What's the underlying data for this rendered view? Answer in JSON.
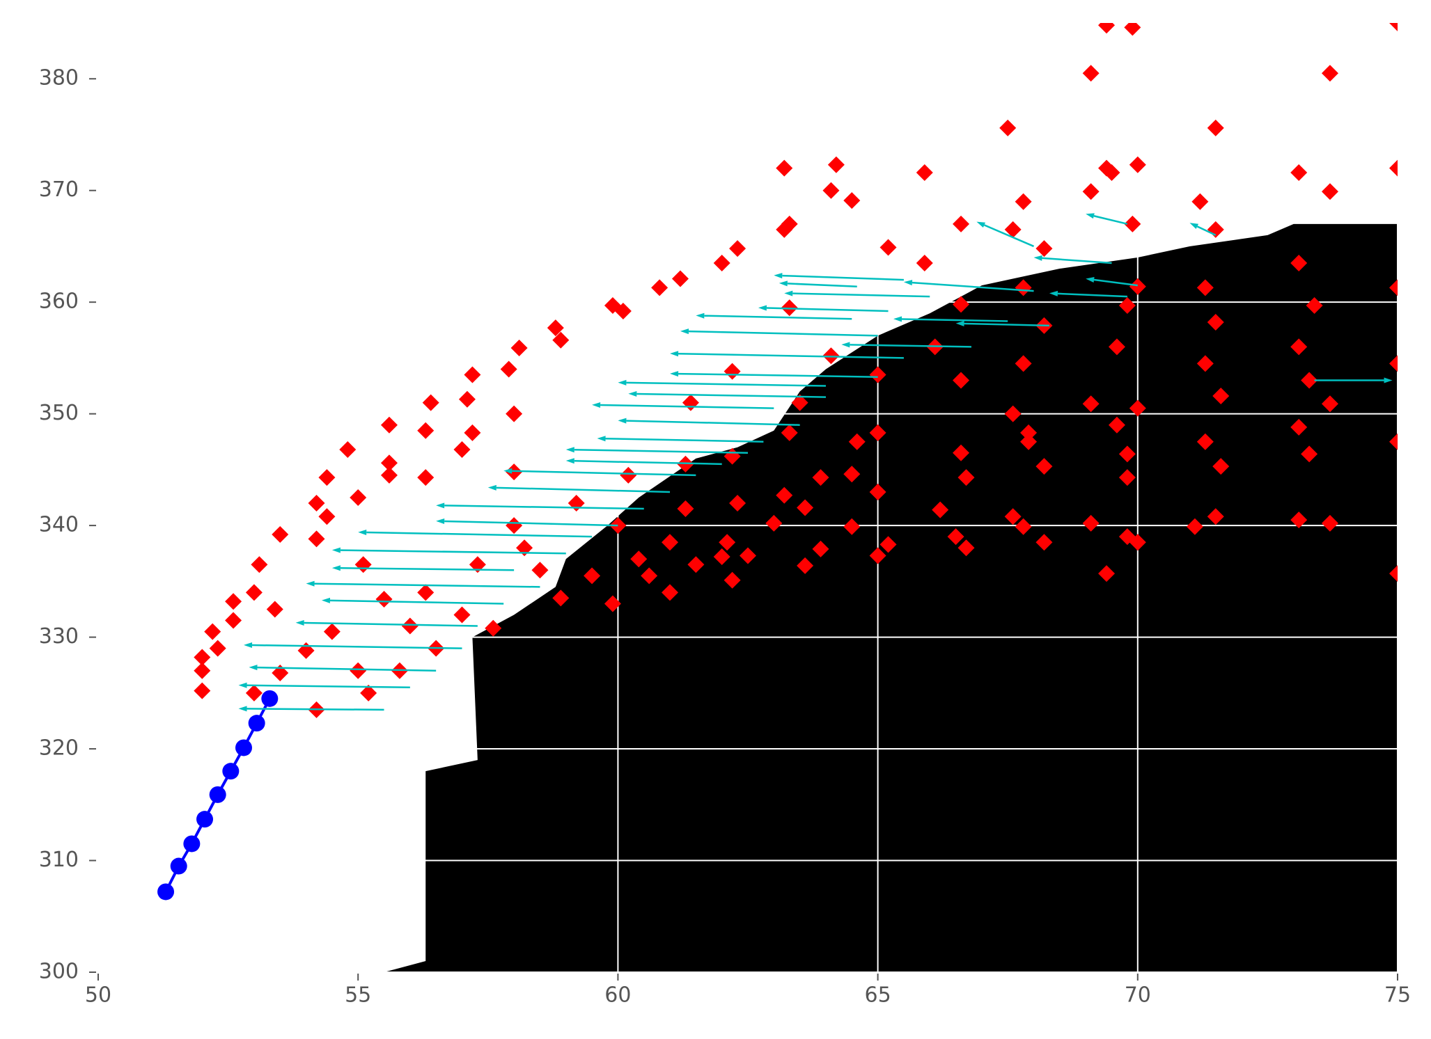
{
  "chart_data": {
    "type": "scatter",
    "xlim": [
      50,
      75
    ],
    "ylim": [
      300,
      385
    ],
    "xticks": [
      50,
      55,
      60,
      65,
      70,
      75
    ],
    "yticks": [
      300,
      310,
      320,
      330,
      340,
      350,
      360,
      370,
      380
    ],
    "grid": true,
    "grid_color": "#ffffff",
    "region": {
      "color": "#000000",
      "x": [
        55.5,
        56.3,
        56.3,
        57.3,
        57.2,
        58.0,
        58.8,
        59.0,
        59.8,
        60.4,
        61.5,
        62.3,
        63.0,
        63.5,
        64.0,
        65.0,
        66.0,
        67.0,
        68.5,
        70.0,
        71.0,
        72.5,
        73.0,
        75.0,
        75.0
      ],
      "y": [
        300,
        301,
        318,
        319,
        330,
        332,
        334.5,
        337,
        340,
        342.5,
        346,
        347,
        348.5,
        352,
        354,
        357,
        359,
        361.5,
        363,
        364,
        365,
        366,
        367,
        367,
        300
      ]
    },
    "quiver": {
      "color": "#00bfbf",
      "x": [
        55.5,
        56,
        56.5,
        57,
        57.3,
        57.8,
        58.5,
        58,
        59,
        59.5,
        60,
        60.5,
        61,
        61.5,
        62,
        62.5,
        62.8,
        63.5,
        63,
        64,
        64,
        65,
        65.5,
        65,
        64.5,
        65.2,
        66,
        64.6,
        65.5,
        66.8,
        67.5,
        68.3,
        68,
        69.5,
        69.8,
        70,
        68,
        69.8,
        71.5,
        73.4
      ],
      "y": [
        323.5,
        325.5,
        327,
        329,
        331,
        333,
        334.5,
        336,
        337.5,
        339,
        340,
        341.5,
        343,
        344.5,
        345.5,
        346.5,
        347.5,
        349,
        350.5,
        351.5,
        352.5,
        353.3,
        355,
        357,
        358.5,
        359.2,
        360.5,
        361.4,
        362,
        356,
        358.3,
        357.9,
        361,
        363.5,
        360.5,
        361.5,
        365,
        367,
        366,
        353
      ],
      "u": [
        -2.8,
        -3.3,
        -3.6,
        -4.2,
        -3.5,
        -3.5,
        -4.5,
        -3.5,
        -4.5,
        -4.5,
        -3.5,
        -4,
        -3.5,
        -3.7,
        -3,
        -3.5,
        -3.2,
        -3.5,
        -3.5,
        -3.8,
        -4,
        -4,
        -4.5,
        -3.8,
        -3,
        -2.5,
        -2.8,
        -1.5,
        -2.5,
        -2.5,
        -2.2,
        -1.8,
        -2.5,
        -1.5,
        -1.5,
        -1,
        -1.1,
        -0.8,
        -0.5,
        1.5
      ],
      "v": [
        0.1,
        0.2,
        0.3,
        0.3,
        0.3,
        0.3,
        0.3,
        0.2,
        0.3,
        0.4,
        0.4,
        0.3,
        0.4,
        0.4,
        0.3,
        0.3,
        0.3,
        0.4,
        0.3,
        0.3,
        0.3,
        0.3,
        0.4,
        0.4,
        0.3,
        0.3,
        0.3,
        0.3,
        0.4,
        0.2,
        0.2,
        0.2,
        0.8,
        0.5,
        0.3,
        0.6,
        2.2,
        0.9,
        1.1,
        0
      ]
    },
    "series": [
      {
        "color": "#ff0000",
        "marker": "D",
        "x": [
          52.0,
          52.0,
          52.0,
          52.3,
          52.2,
          52.6,
          52.6,
          53.0,
          53.1,
          53.4,
          53.5,
          54.2,
          54.2,
          54.4,
          54.4,
          54.8,
          55.0,
          55.1,
          55.6,
          55.6,
          55.6,
          56.3,
          56.3,
          56.4,
          57.1,
          57.2,
          57.2,
          57.0,
          57.9,
          58.1,
          58.0,
          58.0,
          58.8,
          58.9,
          59.9,
          60.1,
          60.8,
          61.2,
          62.0,
          62.3,
          63.2,
          63.3,
          63.2,
          63.3,
          64.1,
          64.2,
          64.5,
          65.2,
          65.9,
          66.6,
          67.5,
          67.6,
          67.8,
          68.2,
          69.1,
          69.4,
          69.4,
          69.5,
          69.1,
          69.9,
          70.0,
          69.9,
          71.2,
          71.5,
          71.5,
          73.1,
          73.7,
          73.7,
          75.0,
          75.0,
          65.0,
          65.0,
          64.6,
          64.5,
          64.5,
          65.0,
          65.2,
          65.0,
          66.1,
          66.6,
          66.6,
          66.7,
          66.2,
          66.5,
          66.7,
          67.6,
          67.6,
          67.9,
          67.9,
          67.8,
          67.8,
          68.2,
          68.2,
          69.1,
          69.1,
          69.4,
          69.6,
          69.6,
          69.8,
          69.8,
          69.8,
          70.0,
          70.0,
          71.1,
          71.3,
          71.3,
          71.5,
          71.6,
          71.6,
          71.5,
          73.1,
          73.1,
          73.1,
          73.3,
          73.3,
          73.7,
          73.7,
          75.0,
          75.0,
          75.0,
          75.0,
          73.1,
          73.4,
          71.3,
          69.8,
          70.0,
          67.8,
          68.2,
          66.6,
          65.9,
          53.0,
          53.5,
          54.0,
          54.2,
          54.5,
          55.0,
          55.2,
          55.5,
          55.8,
          56.0,
          56.3,
          56.5,
          57.0,
          57.3,
          57.6,
          58.0,
          58.2,
          58.5,
          58.9,
          59.2,
          59.5,
          59.9,
          60.0,
          60.2,
          60.4,
          60.6,
          61.0,
          61.0,
          61.3,
          61.3,
          61.4,
          61.5,
          62.0,
          62.2,
          62.1,
          62.3,
          62.2,
          62.2,
          62.5,
          63.0,
          63.2,
          63.3,
          63.5,
          63.6,
          63.6,
          63.9,
          63.9,
          64.1
        ],
        "values": [
          325.2,
          327,
          328.2,
          329,
          330.5,
          331.5,
          333.2,
          334,
          336.5,
          332.5,
          339.2,
          342,
          338.8,
          344.3,
          340.8,
          346.8,
          342.5,
          336.5,
          349,
          345.6,
          344.5,
          348.5,
          344.3,
          351,
          351.3,
          353.5,
          348.3,
          346.8,
          354,
          355.9,
          350,
          344.8,
          357.7,
          356.6,
          359.7,
          359.2,
          361.3,
          362.1,
          363.5,
          364.8,
          366.5,
          367,
          372,
          359.5,
          370,
          372.3,
          369.1,
          364.9,
          371.6,
          367,
          375.6,
          366.5,
          369,
          364.8,
          380.5,
          384.8,
          372,
          371.6,
          369.9,
          384.6,
          372.3,
          367,
          369,
          375.6,
          366.5,
          371.6,
          380.5,
          369.9,
          372,
          385,
          353.5,
          348.3,
          347.5,
          344.6,
          339.9,
          343,
          338.3,
          337.3,
          356,
          353,
          346.5,
          344.3,
          341.4,
          339,
          338,
          350,
          340.8,
          347.5,
          348.3,
          354.5,
          339.9,
          345.3,
          338.5,
          350.9,
          340.2,
          335.7,
          349,
          356,
          346.4,
          344.3,
          339,
          350.5,
          338.5,
          339.9,
          347.5,
          354.5,
          358.2,
          351.6,
          345.3,
          340.8,
          348.8,
          356,
          340.5,
          353,
          346.4,
          350.9,
          340.2,
          347.5,
          354.5,
          361.3,
          335.7,
          363.5,
          359.7,
          361.3,
          359.7,
          361.4,
          361.3,
          357.9,
          359.8,
          363.5,
          325,
          326.8,
          328.8,
          323.5,
          330.5,
          327,
          325,
          333.4,
          327,
          331,
          334,
          329,
          332,
          336.5,
          330.8,
          340,
          338,
          336,
          333.5,
          342,
          335.5,
          333,
          340,
          344.5,
          337,
          335.5,
          338.5,
          334,
          341.5,
          345.5,
          351,
          336.5,
          337.2,
          335.1,
          338.5,
          342,
          346.2,
          353.8,
          337.3,
          340.2,
          342.7,
          348.3,
          351,
          336.4,
          341.6,
          344.3,
          337.9,
          355.2
        ]
      },
      {
        "color": "#0000ff",
        "marker": "o",
        "line": true,
        "x": [
          51.3,
          51.55,
          51.8,
          52.05,
          52.3,
          52.55,
          52.8,
          53.05,
          53.3
        ],
        "values": [
          307.2,
          309.5,
          311.5,
          313.7,
          315.9,
          318,
          320.1,
          322.3,
          324.5
        ]
      }
    ]
  }
}
